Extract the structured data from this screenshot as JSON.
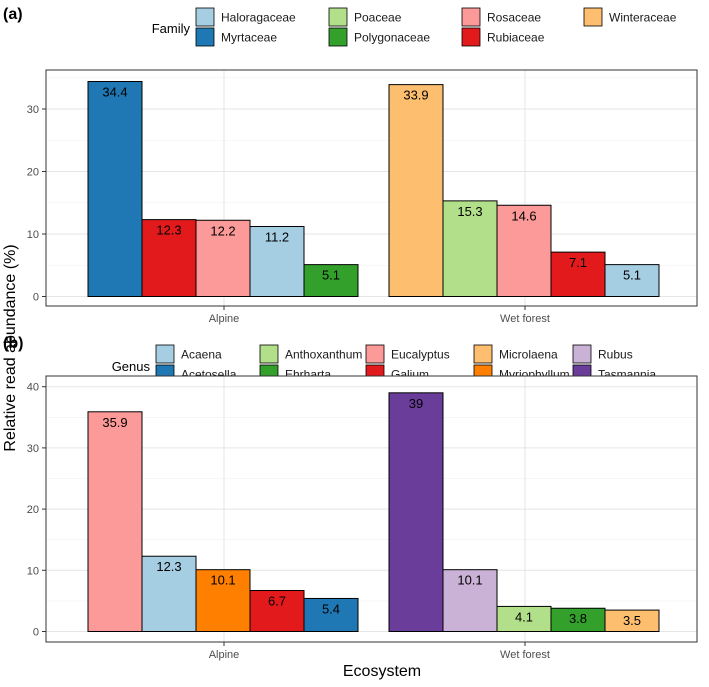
{
  "figure": {
    "ylabel": "Relative read abundance (%)",
    "xlabel": "Ecosystem"
  },
  "chart_data": [
    {
      "panel": "(a)",
      "type": "bar",
      "legend_title": "Family",
      "legend": [
        {
          "name": "Haloragaceae",
          "color": "#a6cee3"
        },
        {
          "name": "Myrtaceae",
          "color": "#1f78b4"
        },
        {
          "name": "Poaceae",
          "color": "#b2df8a"
        },
        {
          "name": "Polygonaceae",
          "color": "#33a02c"
        },
        {
          "name": "Rosaceae",
          "color": "#fb9a99"
        },
        {
          "name": "Rubiaceae",
          "color": "#e31a1c"
        },
        {
          "name": "Winteraceae",
          "color": "#fdbf6f"
        }
      ],
      "ylim": [
        0,
        36
      ],
      "yticks": [
        0,
        10,
        20,
        30
      ],
      "groups": [
        {
          "category": "Alpine",
          "bars": [
            {
              "name": "Myrtaceae",
              "value": 34.4,
              "label": "34.4",
              "color": "#1f78b4"
            },
            {
              "name": "Rubiaceae",
              "value": 12.3,
              "label": "12.3",
              "color": "#e31a1c"
            },
            {
              "name": "Rosaceae",
              "value": 12.2,
              "label": "12.2",
              "color": "#fb9a99"
            },
            {
              "name": "Haloragaceae",
              "value": 11.2,
              "label": "11.2",
              "color": "#a6cee3"
            },
            {
              "name": "Polygonaceae",
              "value": 5.1,
              "label": "5.1",
              "color": "#33a02c"
            }
          ]
        },
        {
          "category": "Wet forest",
          "bars": [
            {
              "name": "Winteraceae",
              "value": 33.9,
              "label": "33.9",
              "color": "#fdbf6f"
            },
            {
              "name": "Poaceae",
              "value": 15.3,
              "label": "15.3",
              "color": "#b2df8a"
            },
            {
              "name": "Rosaceae",
              "value": 14.6,
              "label": "14.6",
              "color": "#fb9a99"
            },
            {
              "name": "Rubiaceae",
              "value": 7.1,
              "label": "7.1",
              "color": "#e31a1c"
            },
            {
              "name": "Haloragaceae",
              "value": 5.1,
              "label": "5.1",
              "color": "#a6cee3"
            }
          ]
        }
      ]
    },
    {
      "panel": "(b)",
      "type": "bar",
      "legend_title": "Genus",
      "legend": [
        {
          "name": "Acaena",
          "color": "#a6cee3"
        },
        {
          "name": "Acetosella",
          "color": "#1f78b4"
        },
        {
          "name": "Anthoxanthum",
          "color": "#b2df8a"
        },
        {
          "name": "Ehrharta",
          "color": "#33a02c"
        },
        {
          "name": "Eucalyptus",
          "color": "#fb9a99"
        },
        {
          "name": "Galium",
          "color": "#e31a1c"
        },
        {
          "name": "Microlaena",
          "color": "#fdbf6f"
        },
        {
          "name": "Myriophyllum",
          "color": "#ff7f00"
        },
        {
          "name": "Rubus",
          "color": "#cab2d6"
        },
        {
          "name": "Tasmannia",
          "color": "#6a3d9a"
        }
      ],
      "ylim": [
        0,
        41
      ],
      "yticks": [
        0,
        10,
        20,
        30,
        40
      ],
      "groups": [
        {
          "category": "Alpine",
          "bars": [
            {
              "name": "Eucalyptus",
              "value": 35.9,
              "label": "35.9",
              "color": "#fb9a99"
            },
            {
              "name": "Acaena",
              "value": 12.3,
              "label": "12.3",
              "color": "#a6cee3"
            },
            {
              "name": "Myriophyllum",
              "value": 10.1,
              "label": "10.1",
              "color": "#ff7f00"
            },
            {
              "name": "Galium",
              "value": 6.7,
              "label": "6.7",
              "color": "#e31a1c"
            },
            {
              "name": "Acetosella",
              "value": 5.4,
              "label": "5.4",
              "color": "#1f78b4"
            }
          ]
        },
        {
          "category": "Wet forest",
          "bars": [
            {
              "name": "Tasmannia",
              "value": 39,
              "label": "39",
              "color": "#6a3d9a"
            },
            {
              "name": "Rubus",
              "value": 10.1,
              "label": "10.1",
              "color": "#cab2d6"
            },
            {
              "name": "Anthoxanthum",
              "value": 4.1,
              "label": "4.1",
              "color": "#b2df8a"
            },
            {
              "name": "Ehrharta",
              "value": 3.8,
              "label": "3.8",
              "color": "#33a02c"
            },
            {
              "name": "Microlaena",
              "value": 3.5,
              "label": "3.5",
              "color": "#fdbf6f"
            }
          ]
        }
      ]
    }
  ]
}
